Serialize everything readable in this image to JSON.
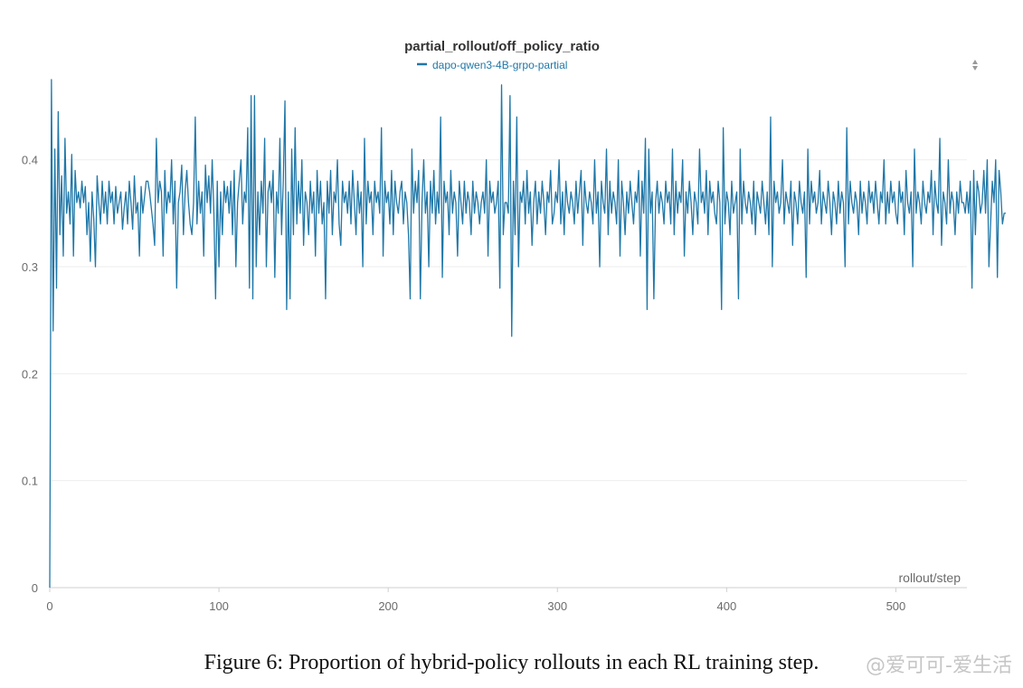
{
  "caption": "Figure 6: Proportion of hybrid-policy rollouts in each RL training step.",
  "watermark": "@爱可可-爱生活",
  "chart_data": {
    "type": "line",
    "title": "partial_rollout/off_policy_ratio",
    "xlabel": "rollout/step",
    "ylabel": "",
    "xlim": [
      0,
      542
    ],
    "ylim": [
      0,
      0.475
    ],
    "xticks": [
      0,
      100,
      200,
      300,
      400,
      500
    ],
    "yticks": [
      0,
      0.1,
      0.2,
      0.3,
      0.4
    ],
    "grid": true,
    "legend_position": "top-center",
    "series": [
      {
        "name": "dapo-qwen3-4B-grpo-partial",
        "color": "#1f77a8",
        "x_start": 0,
        "x_step": 1,
        "y": [
          0,
          0.475,
          0.24,
          0.41,
          0.28,
          0.445,
          0.33,
          0.385,
          0.31,
          0.42,
          0.35,
          0.37,
          0.34,
          0.405,
          0.31,
          0.39,
          0.36,
          0.37,
          0.355,
          0.38,
          0.36,
          0.375,
          0.33,
          0.36,
          0.305,
          0.37,
          0.345,
          0.3,
          0.385,
          0.36,
          0.34,
          0.38,
          0.35,
          0.37,
          0.34,
          0.38,
          0.36,
          0.37,
          0.34,
          0.375,
          0.35,
          0.36,
          0.37,
          0.335,
          0.355,
          0.37,
          0.34,
          0.38,
          0.36,
          0.335,
          0.385,
          0.35,
          0.36,
          0.31,
          0.375,
          0.35,
          0.365,
          0.38,
          0.38,
          0.37,
          0.355,
          0.34,
          0.32,
          0.42,
          0.36,
          0.38,
          0.37,
          0.31,
          0.39,
          0.35,
          0.37,
          0.36,
          0.4,
          0.34,
          0.38,
          0.28,
          0.36,
          0.37,
          0.395,
          0.33,
          0.37,
          0.39,
          0.36,
          0.34,
          0.33,
          0.36,
          0.44,
          0.34,
          0.38,
          0.35,
          0.37,
          0.31,
          0.395,
          0.36,
          0.385,
          0.35,
          0.4,
          0.35,
          0.27,
          0.38,
          0.3,
          0.37,
          0.33,
          0.38,
          0.36,
          0.375,
          0.35,
          0.38,
          0.33,
          0.39,
          0.3,
          0.36,
          0.38,
          0.4,
          0.34,
          0.37,
          0.36,
          0.43,
          0.28,
          0.46,
          0.27,
          0.46,
          0.3,
          0.37,
          0.33,
          0.38,
          0.35,
          0.42,
          0.3,
          0.37,
          0.38,
          0.36,
          0.39,
          0.29,
          0.37,
          0.35,
          0.42,
          0.33,
          0.38,
          0.455,
          0.26,
          0.37,
          0.27,
          0.41,
          0.33,
          0.43,
          0.34,
          0.38,
          0.35,
          0.4,
          0.32,
          0.37,
          0.36,
          0.33,
          0.38,
          0.35,
          0.37,
          0.31,
          0.39,
          0.35,
          0.38,
          0.34,
          0.36,
          0.27,
          0.38,
          0.35,
          0.39,
          0.33,
          0.37,
          0.36,
          0.4,
          0.34,
          0.32,
          0.38,
          0.36,
          0.37,
          0.35,
          0.38,
          0.34,
          0.39,
          0.36,
          0.33,
          0.38,
          0.35,
          0.37,
          0.3,
          0.42,
          0.34,
          0.38,
          0.36,
          0.37,
          0.33,
          0.38,
          0.36,
          0.37,
          0.35,
          0.43,
          0.31,
          0.38,
          0.36,
          0.37,
          0.34,
          0.39,
          0.33,
          0.38,
          0.36,
          0.35,
          0.37,
          0.38,
          0.34,
          0.37,
          0.36,
          0.33,
          0.27,
          0.41,
          0.35,
          0.38,
          0.36,
          0.39,
          0.27,
          0.36,
          0.4,
          0.35,
          0.37,
          0.3,
          0.38,
          0.35,
          0.39,
          0.34,
          0.37,
          0.35,
          0.44,
          0.29,
          0.38,
          0.36,
          0.37,
          0.33,
          0.39,
          0.35,
          0.37,
          0.36,
          0.31,
          0.38,
          0.36,
          0.34,
          0.38,
          0.35,
          0.37,
          0.36,
          0.33,
          0.38,
          0.35,
          0.37,
          0.36,
          0.34,
          0.36,
          0.37,
          0.35,
          0.4,
          0.31,
          0.38,
          0.36,
          0.37,
          0.35,
          0.36,
          0.38,
          0.28,
          0.47,
          0.33,
          0.36,
          0.36,
          0.35,
          0.46,
          0.235,
          0.38,
          0.33,
          0.44,
          0.3,
          0.37,
          0.36,
          0.38,
          0.34,
          0.39,
          0.35,
          0.37,
          0.32,
          0.36,
          0.38,
          0.34,
          0.37,
          0.35,
          0.38,
          0.36,
          0.33,
          0.37,
          0.36,
          0.39,
          0.34,
          0.35,
          0.37,
          0.36,
          0.4,
          0.34,
          0.37,
          0.33,
          0.38,
          0.36,
          0.35,
          0.37,
          0.36,
          0.34,
          0.38,
          0.35,
          0.37,
          0.39,
          0.32,
          0.38,
          0.36,
          0.35,
          0.37,
          0.36,
          0.34,
          0.4,
          0.35,
          0.37,
          0.3,
          0.38,
          0.36,
          0.35,
          0.41,
          0.33,
          0.38,
          0.35,
          0.37,
          0.36,
          0.34,
          0.4,
          0.31,
          0.38,
          0.36,
          0.33,
          0.37,
          0.35,
          0.38,
          0.36,
          0.34,
          0.37,
          0.36,
          0.39,
          0.31,
          0.38,
          0.35,
          0.42,
          0.26,
          0.41,
          0.35,
          0.37,
          0.27,
          0.36,
          0.38,
          0.35,
          0.37,
          0.36,
          0.34,
          0.38,
          0.36,
          0.37,
          0.34,
          0.41,
          0.33,
          0.38,
          0.35,
          0.37,
          0.36,
          0.4,
          0.31,
          0.37,
          0.35,
          0.38,
          0.36,
          0.33,
          0.37,
          0.36,
          0.34,
          0.41,
          0.36,
          0.37,
          0.35,
          0.39,
          0.33,
          0.38,
          0.36,
          0.37,
          0.35,
          0.34,
          0.38,
          0.36,
          0.26,
          0.43,
          0.34,
          0.37,
          0.36,
          0.33,
          0.38,
          0.35,
          0.36,
          0.37,
          0.27,
          0.41,
          0.34,
          0.38,
          0.36,
          0.35,
          0.37,
          0.36,
          0.34,
          0.38,
          0.33,
          0.37,
          0.36,
          0.35,
          0.38,
          0.36,
          0.34,
          0.37,
          0.33,
          0.44,
          0.3,
          0.38,
          0.36,
          0.37,
          0.35,
          0.36,
          0.4,
          0.34,
          0.37,
          0.36,
          0.35,
          0.38,
          0.32,
          0.37,
          0.36,
          0.34,
          0.38,
          0.36,
          0.35,
          0.37,
          0.29,
          0.41,
          0.34,
          0.38,
          0.36,
          0.37,
          0.35,
          0.36,
          0.39,
          0.34,
          0.37,
          0.36,
          0.35,
          0.38,
          0.36,
          0.33,
          0.37,
          0.36,
          0.34,
          0.38,
          0.35,
          0.37,
          0.36,
          0.3,
          0.43,
          0.34,
          0.38,
          0.36,
          0.35,
          0.37,
          0.36,
          0.33,
          0.38,
          0.35,
          0.37,
          0.36,
          0.34,
          0.38,
          0.36,
          0.37,
          0.35,
          0.38,
          0.36,
          0.34,
          0.37,
          0.36,
          0.4,
          0.34,
          0.37,
          0.35,
          0.38,
          0.36,
          0.37,
          0.35,
          0.34,
          0.38,
          0.36,
          0.37,
          0.33,
          0.39,
          0.36,
          0.35,
          0.37,
          0.3,
          0.41,
          0.35,
          0.37,
          0.36,
          0.34,
          0.38,
          0.36,
          0.35,
          0.37,
          0.36,
          0.39,
          0.33,
          0.38,
          0.36,
          0.35,
          0.42,
          0.32,
          0.37,
          0.36,
          0.34,
          0.4,
          0.35,
          0.37,
          0.36,
          0.33,
          0.37,
          0.35,
          0.38,
          0.36,
          0.36,
          0.35,
          0.37,
          0.35,
          0.38,
          0.28,
          0.39,
          0.33,
          0.38,
          0.37,
          0.35,
          0.36,
          0.39,
          0.35,
          0.4,
          0.3,
          0.34,
          0.38,
          0.36,
          0.4,
          0.29,
          0.39,
          0.37,
          0.34,
          0.35,
          0.35
        ]
      }
    ]
  }
}
